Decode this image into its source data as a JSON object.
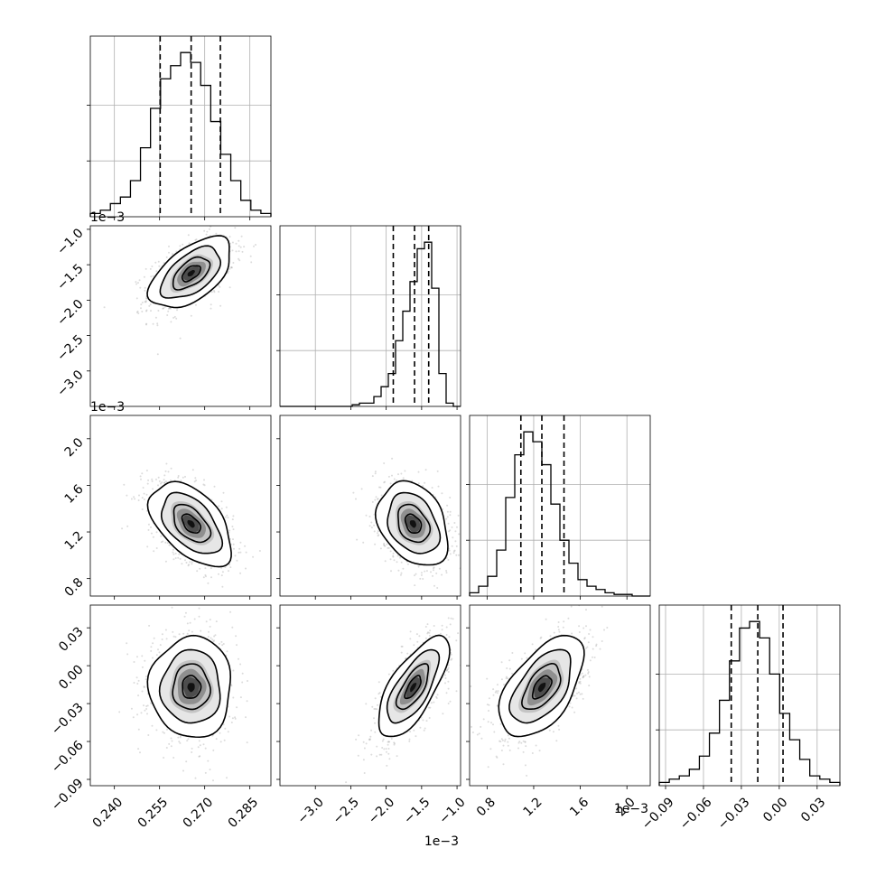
{
  "chart_data": {
    "type": "corner",
    "grid": true,
    "params": [
      {
        "range": [
          0.232,
          0.292
        ],
        "ticks": [
          "0.240",
          "0.255",
          "0.270",
          "0.285"
        ],
        "tick_values": [
          0.24,
          0.255,
          0.27,
          0.285
        ],
        "offset": "",
        "quantiles": [
          0.2552,
          0.2655,
          0.2752
        ],
        "mean": 0.2655,
        "sd": 0.0068
      },
      {
        "range": [
          -3.5,
          -0.95
        ],
        "ticks": [
          "-3.0",
          "-2.5",
          "-2.0",
          "-1.5",
          "-1.0"
        ],
        "tick_values": [
          -3.0,
          -2.5,
          -2.0,
          -1.5,
          -1.0
        ],
        "offset": "1e−3",
        "quantiles": [
          -1.9,
          -1.6,
          -1.4
        ],
        "mean": -1.62,
        "sd": 0.25
      },
      {
        "range": [
          0.65,
          2.2
        ],
        "ticks": [
          "0.8",
          "1.2",
          "1.6",
          "2.0"
        ],
        "tick_values": [
          0.8,
          1.2,
          1.6,
          2.0
        ],
        "offset": "1e−3",
        "quantiles": [
          1.09,
          1.27,
          1.46
        ],
        "mean": 1.27,
        "sd": 0.18
      },
      {
        "range": [
          -0.095,
          0.048
        ],
        "ticks": [
          "-0.09",
          "-0.06",
          "-0.03",
          "0.00",
          "0.03"
        ],
        "tick_values": [
          -0.09,
          -0.06,
          -0.03,
          0.0,
          0.03
        ],
        "offset": "",
        "quantiles": [
          -0.038,
          -0.017,
          0.003
        ],
        "mean": -0.017,
        "sd": 0.02
      }
    ],
    "histograms": [
      {
        "param": 0,
        "bins": [
          0.232,
          0.292
        ],
        "counts": [
          1,
          2,
          4,
          6,
          11,
          21,
          33,
          42,
          46,
          50,
          47,
          40,
          29,
          19,
          11,
          5,
          2,
          1
        ]
      },
      {
        "param": 1,
        "bins": [
          -3.5,
          -0.95
        ],
        "counts": [
          0,
          0,
          0,
          0,
          0,
          0,
          0,
          0,
          0,
          0,
          0.5,
          1,
          1,
          3,
          6,
          10,
          20,
          29,
          38,
          48,
          50,
          36,
          10,
          1,
          0
        ]
      },
      {
        "param": 2,
        "bins": [
          0.65,
          2.2
        ],
        "counts": [
          1,
          3,
          6,
          14,
          30,
          43,
          50,
          47,
          40,
          28,
          17,
          10,
          5,
          3,
          2,
          1,
          0.5,
          0.5,
          0,
          0
        ]
      },
      {
        "param": 3,
        "bins": [
          -0.095,
          0.048
        ],
        "counts": [
          1,
          2,
          3,
          5,
          9,
          16,
          26,
          38,
          48,
          50,
          45,
          34,
          22,
          14,
          8,
          3,
          2,
          1
        ]
      }
    ],
    "pairs": [
      {
        "x_param": 0,
        "y_param": 1,
        "rho": 0.55
      },
      {
        "x_param": 0,
        "y_param": 2,
        "rho": -0.5
      },
      {
        "x_param": 1,
        "y_param": 2,
        "rho": -0.3
      },
      {
        "x_param": 0,
        "y_param": 3,
        "rho": 0.0
      },
      {
        "x_param": 1,
        "y_param": 3,
        "rho": 0.7
      },
      {
        "x_param": 2,
        "y_param": 3,
        "rho": 0.55
      }
    ]
  }
}
